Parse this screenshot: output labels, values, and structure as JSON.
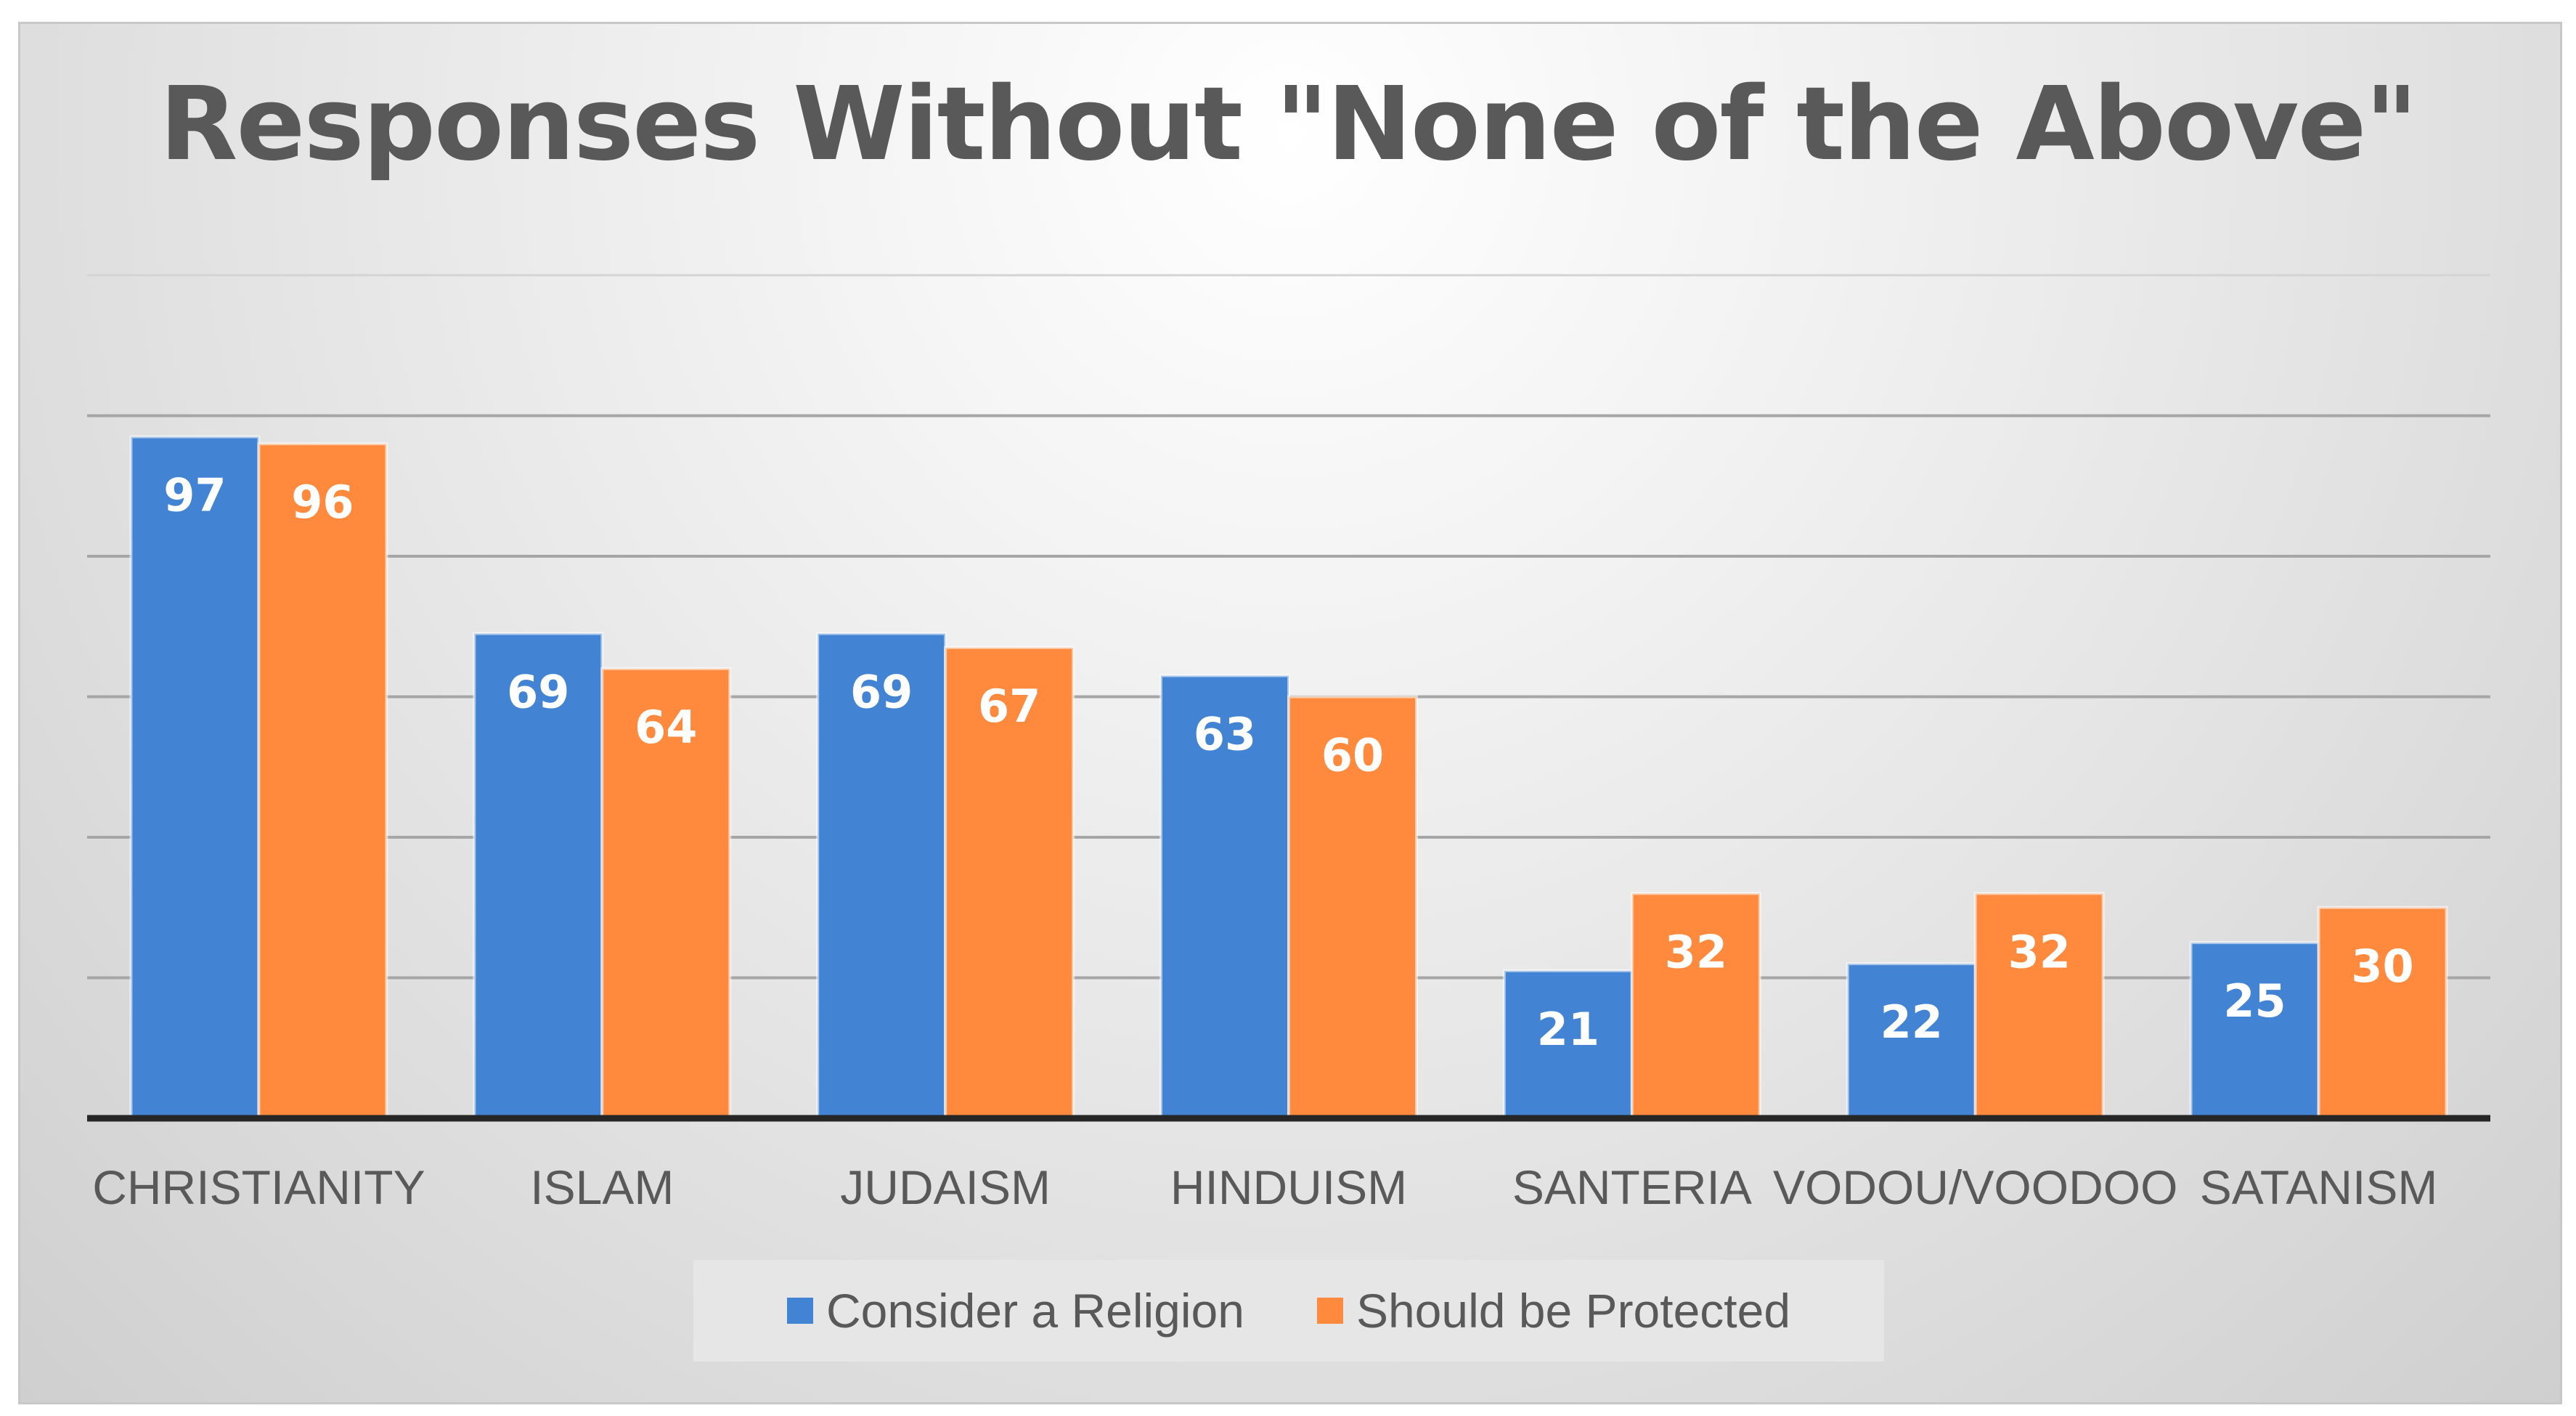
{
  "chart_data": {
    "type": "bar",
    "title": "Responses Without \"None of the Above\"",
    "categories": [
      "CHRISTIANITY",
      "ISLAM",
      "JUDAISM",
      "HINDUISM",
      "SANTERIA",
      "VODOU/VOODOO",
      "SATANISM"
    ],
    "series": [
      {
        "name": "Consider a Religion",
        "color": "#4284d3",
        "values": [
          97,
          69,
          69,
          63,
          21,
          22,
          25
        ]
      },
      {
        "name": "Should be Protected",
        "color": "#ff8a3d",
        "values": [
          96,
          64,
          67,
          60,
          32,
          32,
          30
        ]
      }
    ],
    "ylim": [
      0,
      120
    ],
    "gridlines": [
      20,
      40,
      60,
      80,
      100,
      120
    ],
    "xlabel": "",
    "ylabel": "",
    "legend_position": "bottom",
    "data_labels": true
  }
}
